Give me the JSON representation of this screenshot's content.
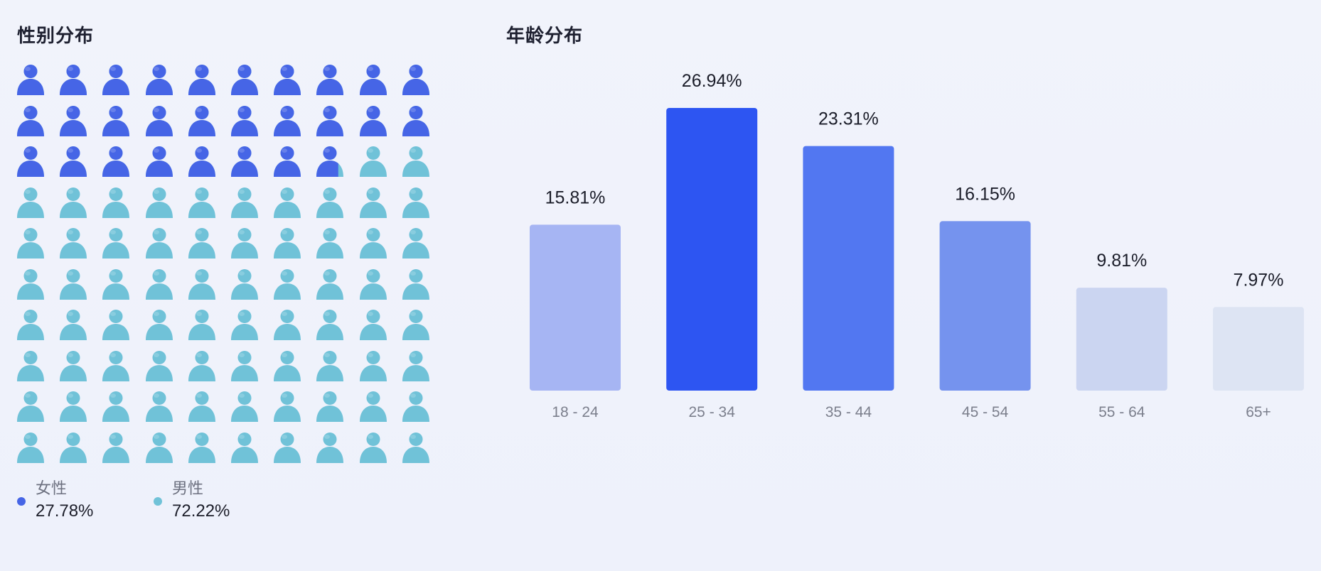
{
  "gender": {
    "title": "性别分布",
    "grid": {
      "rows": 10,
      "cols": 10
    },
    "female": {
      "label": "女性",
      "value": "27.78%",
      "fraction": 0.2778,
      "color": "#4665e6"
    },
    "male": {
      "label": "男性",
      "value": "72.22%",
      "fraction": 0.7222,
      "color": "#70c2d8"
    }
  },
  "age": {
    "title": "年龄分布"
  },
  "chart_data": {
    "type": "bar",
    "categories": [
      "18 - 24",
      "25 - 34",
      "35 - 44",
      "45 - 54",
      "55 - 64",
      "65+"
    ],
    "values": [
      15.81,
      26.94,
      23.31,
      16.15,
      9.81,
      7.97
    ],
    "labels": [
      "15.81%",
      "26.94%",
      "23.31%",
      "16.15%",
      "9.81%",
      "7.97%"
    ],
    "colors": [
      "#a6b5f3",
      "#2d55f2",
      "#5277f1",
      "#7593ee",
      "#cbd5f1",
      "#dde4f3"
    ],
    "title": "",
    "xlabel": "",
    "ylabel": "",
    "ylim": [
      0,
      30
    ],
    "grid": false,
    "legend": "none"
  }
}
